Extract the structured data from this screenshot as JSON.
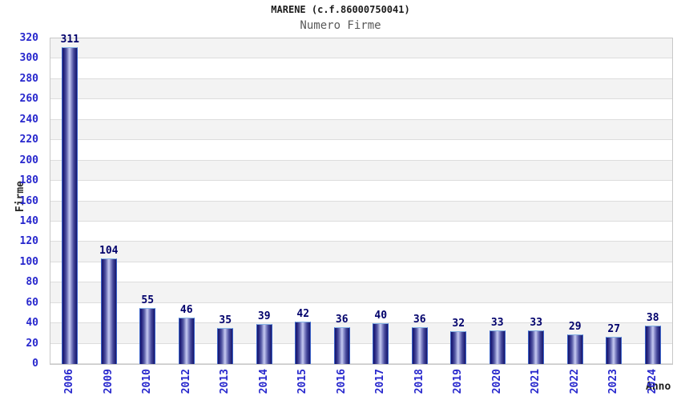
{
  "header": {
    "title": "MARENE (c.f.86000750041)",
    "subtitle": "Numero Firme"
  },
  "chart_data": {
    "type": "bar",
    "title": "MARENE (c.f.86000750041)",
    "subtitle": "Numero Firme",
    "xlabel": "Anno",
    "ylabel": "Firme",
    "categories": [
      "2006",
      "2009",
      "2010",
      "2012",
      "2013",
      "2014",
      "2015",
      "2016",
      "2017",
      "2018",
      "2019",
      "2020",
      "2021",
      "2022",
      "2023",
      "2024"
    ],
    "values": [
      311,
      104,
      55,
      46,
      35,
      39,
      42,
      36,
      40,
      36,
      32,
      33,
      33,
      29,
      27,
      38
    ],
    "ylim": [
      0,
      320
    ],
    "y_tick_step": 20,
    "grid": "horizontal-alternating-bands",
    "legend": "none",
    "colors": {
      "bar_dark": "#16166b",
      "bar_highlight": "#c6caf0",
      "bar_outline_side": "#3a62c8",
      "bar_outline_top": "#85b2e4",
      "tick_label": "#2727cd",
      "value_label": "#00006b",
      "title": "#1c1c1c",
      "subtitle": "#595959",
      "band_shade": "#f3f3f3",
      "gridline": "#dddddd",
      "plot_border": "#c8c8c8"
    }
  }
}
